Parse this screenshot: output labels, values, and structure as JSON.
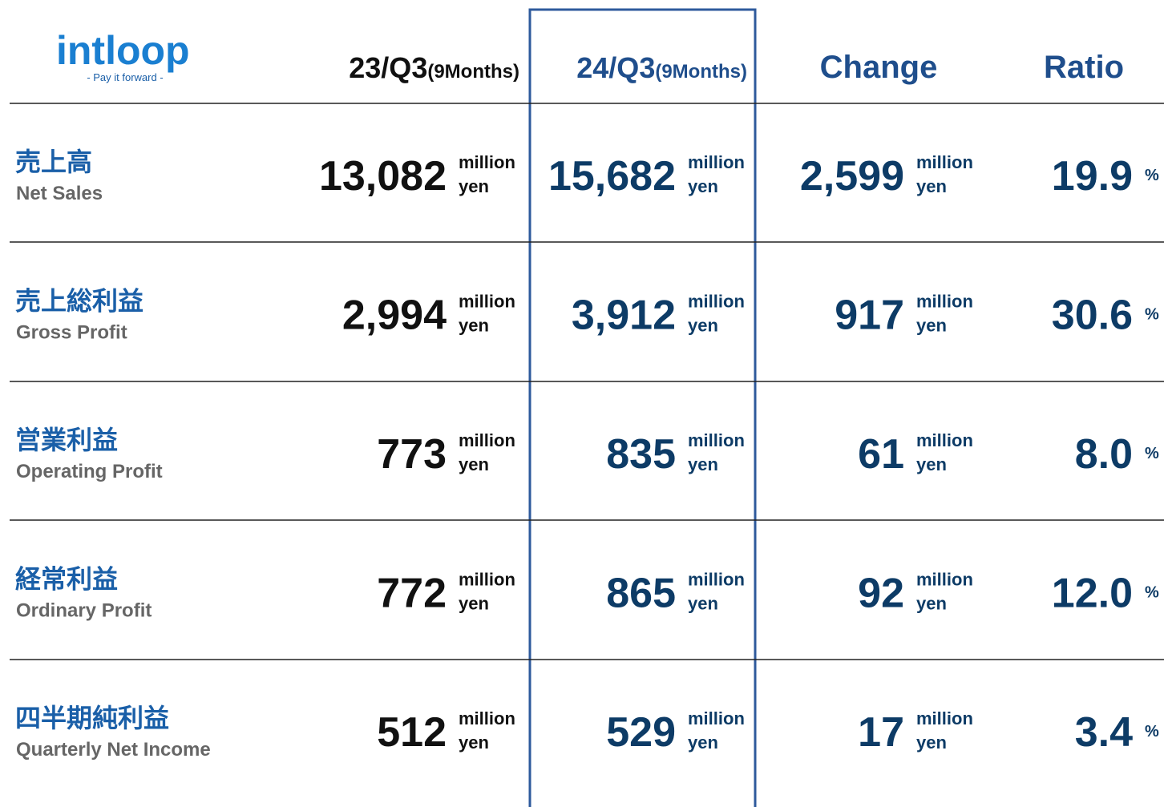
{
  "logo": {
    "name": "intloop",
    "tagline": "- Pay it forward -"
  },
  "header": {
    "columns": [
      {
        "label": "23/Q3",
        "sub": "(9Months)"
      },
      {
        "label": "24/Q3",
        "sub": "(9Months)"
      },
      {
        "label": "Change"
      },
      {
        "label": "Ratio"
      }
    ]
  },
  "table": {
    "unit_top": "million",
    "unit_bottom": "yen",
    "ratio_unit": "%",
    "rows": [
      {
        "jp": "売上高",
        "en": "Net Sales",
        "prev": "13,082",
        "curr": "15,682",
        "change": "2,599",
        "ratio": "19.9"
      },
      {
        "jp": "売上総利益",
        "en": "Gross Profit",
        "prev": "2,994",
        "curr": "3,912",
        "change": "917",
        "ratio": "30.6"
      },
      {
        "jp": "営業利益",
        "en": "Operating Profit",
        "prev": "773",
        "curr": "835",
        "change": "61",
        "ratio": "8.0"
      },
      {
        "jp": "経常利益",
        "en": "Ordinary Profit",
        "prev": "772",
        "curr": "865",
        "change": "92",
        "ratio": "12.0"
      },
      {
        "jp": "四半期純利益",
        "en": "Quarterly Net Income",
        "prev": "512",
        "curr": "529",
        "change": "17",
        "ratio": "3.4"
      }
    ]
  }
}
